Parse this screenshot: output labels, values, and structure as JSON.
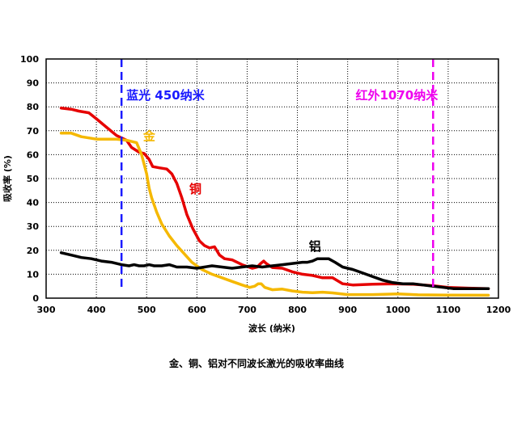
{
  "caption": "金、铜、铝对不同波长激光的吸收率曲线",
  "chart_data": {
    "type": "line",
    "xlabel": "波长 (纳米)",
    "ylabel": "吸收率 (%)",
    "xlim": [
      300,
      1200
    ],
    "ylim": [
      0,
      100
    ],
    "xticks": [
      300,
      400,
      500,
      600,
      700,
      800,
      900,
      1000,
      1100,
      1200
    ],
    "yticks": [
      0,
      10,
      20,
      30,
      40,
      50,
      60,
      70,
      80,
      90,
      100
    ],
    "grid": true,
    "markers": [
      {
        "label": "蓝光 450纳米",
        "x": 450,
        "color": "#1a1aff"
      },
      {
        "label": "红外1070纳米",
        "x": 1070,
        "color": "#ee00ee"
      }
    ],
    "series": [
      {
        "name": "铜",
        "color": "#e60000",
        "points": [
          [
            330,
            79.5
          ],
          [
            350,
            79
          ],
          [
            365,
            78.2
          ],
          [
            385,
            77.5
          ],
          [
            400,
            75
          ],
          [
            420,
            71.5
          ],
          [
            440,
            68
          ],
          [
            460,
            66
          ],
          [
            470,
            63
          ],
          [
            485,
            61
          ],
          [
            495,
            60.5
          ],
          [
            505,
            58
          ],
          [
            512,
            55
          ],
          [
            525,
            54.5
          ],
          [
            540,
            54
          ],
          [
            550,
            52
          ],
          [
            560,
            48
          ],
          [
            570,
            42
          ],
          [
            580,
            35
          ],
          [
            592,
            29
          ],
          [
            605,
            24
          ],
          [
            615,
            22
          ],
          [
            625,
            21
          ],
          [
            635,
            21.5
          ],
          [
            645,
            18
          ],
          [
            655,
            16.5
          ],
          [
            670,
            16
          ],
          [
            690,
            14
          ],
          [
            710,
            12.5
          ],
          [
            720,
            13
          ],
          [
            727,
            14.5
          ],
          [
            733,
            15.5
          ],
          [
            738,
            14.5
          ],
          [
            750,
            12.8
          ],
          [
            770,
            12.5
          ],
          [
            790,
            11
          ],
          [
            810,
            10
          ],
          [
            830,
            9.5
          ],
          [
            850,
            8.5
          ],
          [
            870,
            8.5
          ],
          [
            890,
            6
          ],
          [
            910,
            5.5
          ],
          [
            950,
            5.8
          ],
          [
            990,
            6
          ],
          [
            1030,
            5.8
          ],
          [
            1070,
            5.2
          ],
          [
            1100,
            4.5
          ],
          [
            1140,
            4.2
          ],
          [
            1180,
            4
          ]
        ]
      },
      {
        "name": "金",
        "color": "#f5b800",
        "points": [
          [
            330,
            69
          ],
          [
            350,
            69
          ],
          [
            370,
            67.5
          ],
          [
            400,
            66.5
          ],
          [
            420,
            66.5
          ],
          [
            440,
            66.5
          ],
          [
            460,
            66
          ],
          [
            480,
            65
          ],
          [
            490,
            60
          ],
          [
            500,
            52
          ],
          [
            505,
            46
          ],
          [
            510,
            42
          ],
          [
            520,
            36
          ],
          [
            530,
            31
          ],
          [
            545,
            26
          ],
          [
            560,
            22
          ],
          [
            575,
            18.5
          ],
          [
            590,
            15
          ],
          [
            610,
            12
          ],
          [
            630,
            10
          ],
          [
            650,
            8.5
          ],
          [
            670,
            7
          ],
          [
            690,
            5.5
          ],
          [
            705,
            4.5
          ],
          [
            715,
            5
          ],
          [
            722,
            6
          ],
          [
            728,
            6
          ],
          [
            735,
            4.5
          ],
          [
            750,
            3.5
          ],
          [
            770,
            3.8
          ],
          [
            790,
            3
          ],
          [
            810,
            2.5
          ],
          [
            830,
            2.3
          ],
          [
            850,
            2.5
          ],
          [
            870,
            2.2
          ],
          [
            900,
            1.5
          ],
          [
            950,
            1.5
          ],
          [
            1000,
            1.8
          ],
          [
            1040,
            1.4
          ],
          [
            1100,
            1.3
          ],
          [
            1180,
            1.2
          ]
        ]
      },
      {
        "name": "铝",
        "color": "#000000",
        "points": [
          [
            330,
            19
          ],
          [
            350,
            18
          ],
          [
            370,
            17
          ],
          [
            390,
            16.5
          ],
          [
            410,
            15.5
          ],
          [
            430,
            15
          ],
          [
            450,
            14
          ],
          [
            465,
            13.5
          ],
          [
            475,
            14
          ],
          [
            485,
            13.5
          ],
          [
            495,
            13.5
          ],
          [
            505,
            14
          ],
          [
            515,
            13.5
          ],
          [
            530,
            13.5
          ],
          [
            545,
            14
          ],
          [
            560,
            13
          ],
          [
            580,
            13
          ],
          [
            600,
            12.5
          ],
          [
            615,
            13
          ],
          [
            630,
            13.5
          ],
          [
            650,
            13
          ],
          [
            670,
            12.5
          ],
          [
            690,
            13
          ],
          [
            710,
            13.5
          ],
          [
            730,
            13
          ],
          [
            750,
            13.5
          ],
          [
            770,
            14
          ],
          [
            790,
            14.5
          ],
          [
            810,
            15
          ],
          [
            820,
            15
          ],
          [
            830,
            15.5
          ],
          [
            840,
            16.5
          ],
          [
            850,
            16.5
          ],
          [
            862,
            16.5
          ],
          [
            875,
            15
          ],
          [
            890,
            13
          ],
          [
            910,
            12
          ],
          [
            930,
            10.5
          ],
          [
            950,
            9
          ],
          [
            970,
            7.5
          ],
          [
            990,
            6.5
          ],
          [
            1010,
            6
          ],
          [
            1030,
            6
          ],
          [
            1050,
            5.5
          ],
          [
            1070,
            5
          ],
          [
            1090,
            4.5
          ],
          [
            1110,
            4
          ],
          [
            1140,
            4
          ],
          [
            1180,
            4
          ]
        ]
      }
    ],
    "series_labels": [
      {
        "text": "金",
        "series": "金",
        "x": 505,
        "y": 66
      },
      {
        "text": "铜",
        "series": "铜",
        "x": 597,
        "y": 44
      },
      {
        "text": "铝",
        "series": "铝",
        "x": 835,
        "y": 20
      }
    ]
  }
}
